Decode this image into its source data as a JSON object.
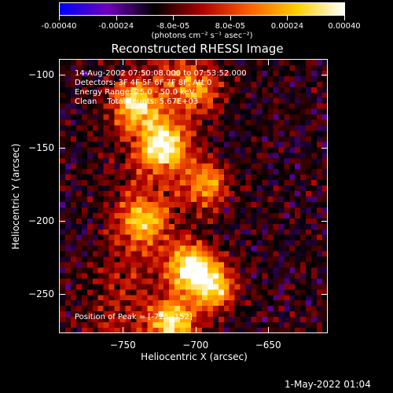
{
  "colorbar": {
    "tick_labels": [
      "-0.00040",
      "-0.00024",
      "-8.0e-05",
      "8.0e-05",
      "0.00024",
      "0.00040"
    ],
    "tick_values": [
      -0.0004,
      -0.00024,
      -8e-05,
      8e-05,
      0.00024,
      0.0004
    ],
    "units_label": "(photons cm⁻² s⁻¹ asec⁻²)",
    "range": [
      -0.0004,
      0.0004
    ],
    "colormap_stops": [
      "#0000ff",
      "#7000c0",
      "#000000",
      "#b00000",
      "#ff6000",
      "#ffd000",
      "#ffffff"
    ]
  },
  "chart_data": {
    "type": "heatmap",
    "title": "Reconstructed RHESSI Image",
    "xlabel": "Heliocentric X (arcsec)",
    "ylabel": "Heliocentric Y (arcsec)",
    "xlim": [
      -794,
      -609
    ],
    "ylim": [
      -277,
      -89
    ],
    "x_ticks": [
      -750,
      -700,
      -650
    ],
    "y_ticks": [
      -100,
      -150,
      -200,
      -250
    ],
    "x_tick_labels": [
      "−750",
      "−700",
      "−650"
    ],
    "y_tick_labels": [
      "−100",
      "−150",
      "−200",
      "−250"
    ],
    "peak_position": [
      -725,
      -152
    ],
    "bright_sources": [
      {
        "x": -722,
        "y": -148,
        "intensity": 0.00035
      },
      {
        "x": -742,
        "y": -120,
        "intensity": 0.00028
      },
      {
        "x": -704,
        "y": -232,
        "intensity": 0.00038
      },
      {
        "x": -688,
        "y": -246,
        "intensity": 0.0003
      },
      {
        "x": -716,
        "y": -270,
        "intensity": 0.00033
      },
      {
        "x": -694,
        "y": -175,
        "intensity": 0.00022
      },
      {
        "x": -735,
        "y": -200,
        "intensity": 0.00018
      },
      {
        "x": -700,
        "y": -110,
        "intensity": 0.00016
      }
    ]
  },
  "annotations": {
    "time_range": "14-Aug-2002 07:50:08.000 to 07:53:52.000",
    "detectors": "Detectors: 3F 4F 5F 6F 7F 8F, Att 0",
    "energy_range": "Energy Range: 25.0 - 50.0 keV",
    "clean_counts": "Clean    Total counts: 5.67E+03",
    "peak_text": "Position of Peak = [-725,-152]"
  },
  "footer": {
    "timestamp": "1-May-2022 01:04"
  }
}
